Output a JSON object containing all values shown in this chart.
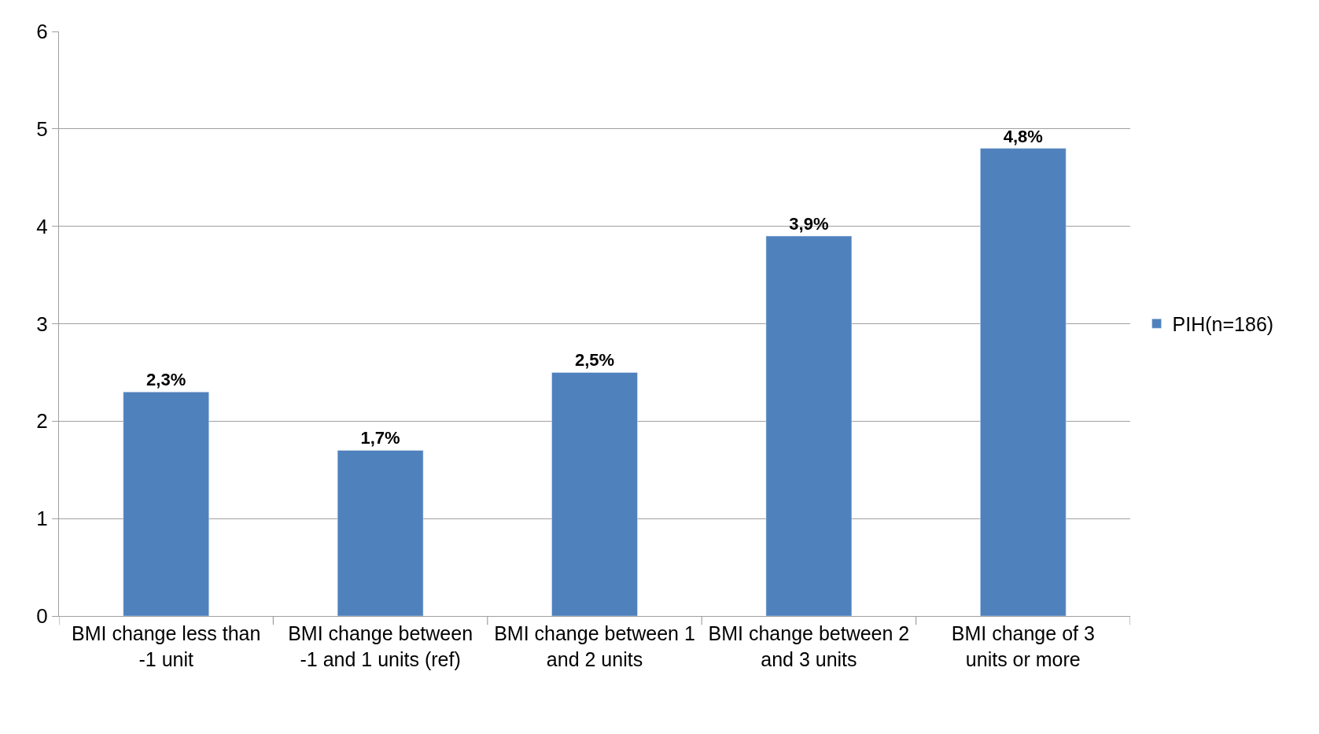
{
  "chart_data": {
    "type": "bar",
    "categories": [
      "BMI change less than -1 unit",
      "BMI change between -1 and 1 units (ref)",
      "BMI change between 1 and 2 units",
      "BMI change between 2 and 3 units",
      "BMI change of 3 units or more"
    ],
    "series": [
      {
        "name": "PIH(n=186)",
        "color": "#4f81bd",
        "values": [
          2.3,
          1.7,
          2.5,
          3.9,
          4.8
        ],
        "value_labels": [
          "2,3%",
          "1,7%",
          "2,5%",
          "3,9%",
          "4,8%"
        ]
      }
    ],
    "ylim": [
      0,
      6
    ],
    "yticks": [
      0,
      1,
      2,
      3,
      4,
      5,
      6
    ],
    "grid": "y",
    "legend": "right"
  }
}
